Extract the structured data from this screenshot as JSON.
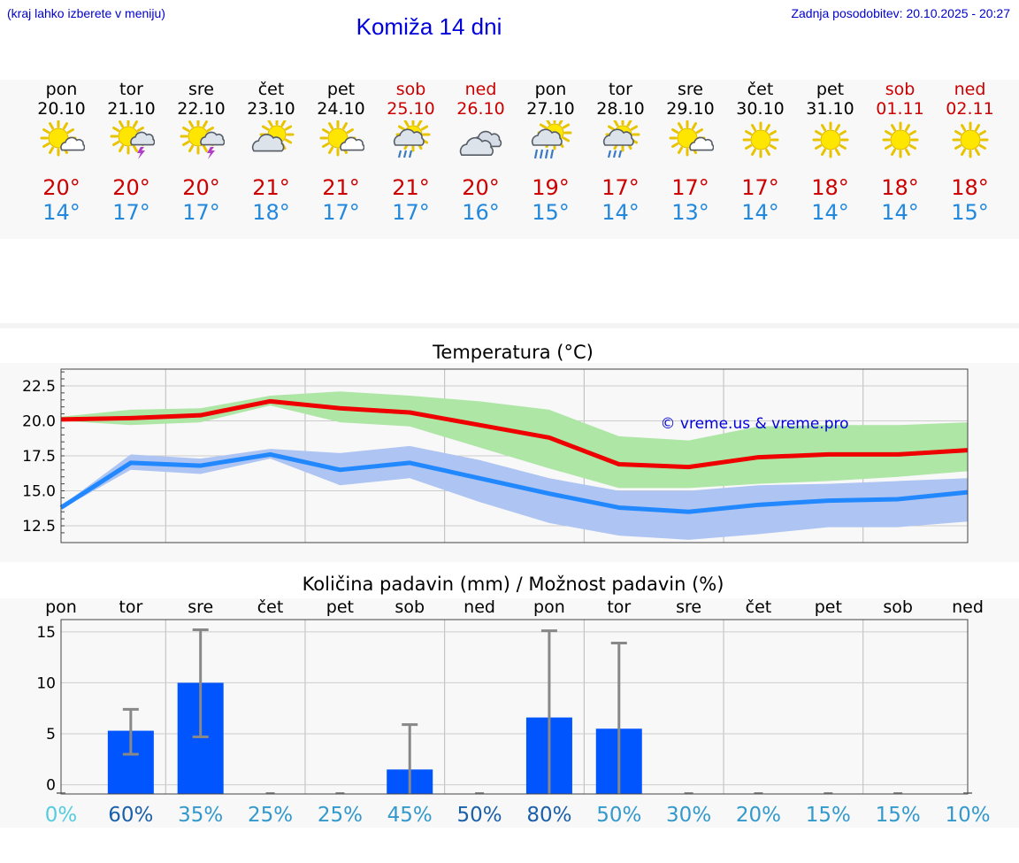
{
  "header": {
    "hint": "(kraj lahko izberete v meniju)",
    "title": "Komiža 14 dni",
    "updated": "Zadnja posodobitev: 20.10.2025 - 20:27"
  },
  "colors": {
    "max_temp": "#ee0000",
    "min_temp": "#2288ff",
    "max_band": "#aee6a6",
    "min_band": "#aec4f2",
    "overlap_band": "#7fc6a0",
    "rain_bar": "#0055ff",
    "error_bar": "#888888",
    "weekend": "#cc0000"
  },
  "days": [
    {
      "name": "pon",
      "date": "20.10",
      "icon": "sun-small-cloud-icon",
      "max": "20°",
      "min": "14°",
      "weekend": false
    },
    {
      "name": "tor",
      "date": "21.10",
      "icon": "sun-cloud-thunder-icon",
      "max": "20°",
      "min": "17°",
      "weekend": false
    },
    {
      "name": "sre",
      "date": "22.10",
      "icon": "sun-cloud-thunder-icon",
      "max": "20°",
      "min": "17°",
      "weekend": false
    },
    {
      "name": "čet",
      "date": "23.10",
      "icon": "cloud-sun-icon",
      "max": "21°",
      "min": "18°",
      "weekend": false
    },
    {
      "name": "pet",
      "date": "24.10",
      "icon": "sun-small-cloud-icon",
      "max": "21°",
      "min": "17°",
      "weekend": false
    },
    {
      "name": "sob",
      "date": "25.10",
      "icon": "sun-cloud-rain-icon",
      "max": "21°",
      "min": "17°",
      "weekend": true
    },
    {
      "name": "ned",
      "date": "26.10",
      "icon": "cloudy-icon",
      "max": "20°",
      "min": "16°",
      "weekend": true
    },
    {
      "name": "pon",
      "date": "27.10",
      "icon": "sun-cloud-heavy-rain-icon",
      "max": "19°",
      "min": "15°",
      "weekend": false
    },
    {
      "name": "tor",
      "date": "28.10",
      "icon": "sun-cloud-rain-icon",
      "max": "17°",
      "min": "14°",
      "weekend": false
    },
    {
      "name": "sre",
      "date": "29.10",
      "icon": "sun-small-cloud-icon",
      "max": "17°",
      "min": "13°",
      "weekend": false
    },
    {
      "name": "čet",
      "date": "30.10",
      "icon": "sun-icon",
      "max": "17°",
      "min": "14°",
      "weekend": false
    },
    {
      "name": "pet",
      "date": "31.10",
      "icon": "sun-icon",
      "max": "18°",
      "min": "14°",
      "weekend": false
    },
    {
      "name": "sob",
      "date": "01.11",
      "icon": "sun-icon",
      "max": "18°",
      "min": "14°",
      "weekend": true
    },
    {
      "name": "ned",
      "date": "02.11",
      "icon": "sun-icon",
      "max": "18°",
      "min": "15°",
      "weekend": true
    }
  ],
  "chart_data": [
    {
      "type": "line",
      "title": "Temperatura (°C)",
      "watermark": "© vreme.us & vreme.pro",
      "x": [
        0,
        1,
        2,
        3,
        4,
        5,
        6,
        7,
        8,
        9,
        10,
        11,
        12,
        13
      ],
      "ylim": [
        11.3,
        23.7
      ],
      "yticks": [
        "12.5",
        "15.0",
        "17.5",
        "20.0",
        "22.5"
      ],
      "ytick_values": [
        12.5,
        15.0,
        17.5,
        20.0,
        22.5
      ],
      "grid": true,
      "series": [
        {
          "values": [
            20.1,
            20.2,
            20.4,
            21.4,
            20.9,
            20.6,
            19.7,
            18.8,
            16.9,
            16.7,
            17.4,
            17.6,
            17.6,
            17.9
          ],
          "low": [
            20.0,
            19.7,
            19.9,
            21.1,
            19.9,
            19.6,
            18.1,
            16.6,
            15.2,
            15.2,
            15.5,
            15.7,
            16.0,
            16.4
          ],
          "high": [
            20.3,
            20.8,
            20.9,
            21.8,
            22.1,
            21.8,
            21.4,
            20.8,
            18.9,
            18.6,
            19.6,
            19.7,
            19.7,
            19.9
          ]
        },
        {
          "values": [
            13.8,
            17.0,
            16.8,
            17.6,
            16.5,
            17.0,
            15.9,
            14.8,
            13.8,
            13.5,
            14.0,
            14.3,
            14.4,
            14.9
          ],
          "low": [
            13.7,
            16.5,
            16.2,
            17.3,
            15.4,
            15.9,
            14.2,
            12.7,
            11.8,
            11.5,
            11.9,
            12.4,
            12.4,
            12.8
          ],
          "high": [
            13.9,
            17.6,
            17.3,
            18.0,
            17.7,
            18.2,
            17.2,
            15.9,
            15.0,
            15.0,
            15.4,
            15.5,
            15.7,
            15.9
          ]
        }
      ]
    },
    {
      "type": "bar",
      "title": "Količina padavin (mm) / Možnost padavin (%)",
      "categories": [
        "pon",
        "tor",
        "sre",
        "čet",
        "pet",
        "sob",
        "ned",
        "pon",
        "tor",
        "sre",
        "čet",
        "pet",
        "sob",
        "ned"
      ],
      "values": [
        0,
        5.3,
        10.0,
        0,
        0,
        1.5,
        0,
        6.6,
        5.5,
        0,
        0,
        0,
        0,
        0
      ],
      "err_high": [
        0,
        7.4,
        15.2,
        0,
        0,
        5.9,
        0,
        15.1,
        13.9,
        0,
        0,
        0,
        0,
        0
      ],
      "err_low": [
        0,
        3.0,
        4.7,
        0,
        0,
        0,
        0,
        0,
        0,
        0,
        0,
        0,
        0,
        0
      ],
      "probability": [
        "0%",
        "60%",
        "35%",
        "25%",
        "25%",
        "45%",
        "50%",
        "80%",
        "50%",
        "30%",
        "20%",
        "15%",
        "15%",
        "10%"
      ],
      "probability_colors": [
        "#55ccdd",
        "#1a5faa",
        "#3399cc",
        "#3399cc",
        "#3399cc",
        "#3399cc",
        "#1a5faa",
        "#1a5faa",
        "#3399cc",
        "#3399cc",
        "#3399cc",
        "#3399cc",
        "#3399cc",
        "#3399cc"
      ],
      "ylim": [
        -0.9,
        16.2
      ],
      "yticks": [
        "0",
        "5",
        "10",
        "15"
      ],
      "ytick_values": [
        0,
        5,
        10,
        15
      ],
      "grid": true
    }
  ]
}
